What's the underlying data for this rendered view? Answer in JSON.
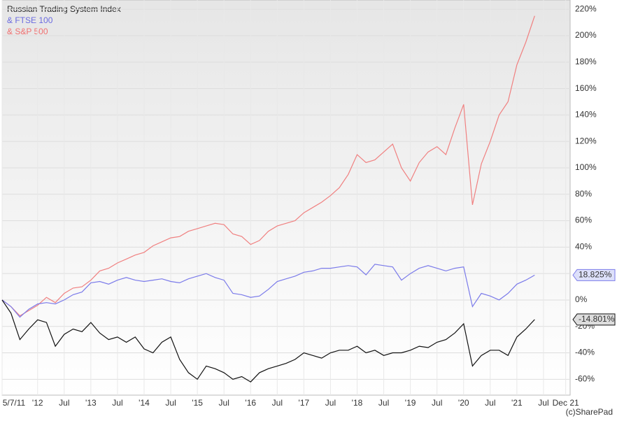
{
  "chart_data": {
    "type": "line",
    "legend": [
      "Russian Trading System Index",
      "& FTSE 100",
      "& S&P 500"
    ],
    "credit": "(c)SharePad",
    "xlim": [
      0,
      64
    ],
    "xticks": [
      {
        "value": 0,
        "label": "5/7/11"
      },
      {
        "value": 4,
        "label": "'12"
      },
      {
        "value": 7,
        "label": "Jul"
      },
      {
        "value": 10,
        "label": "'13"
      },
      {
        "value": 13,
        "label": "Jul"
      },
      {
        "value": 16,
        "label": "'14"
      },
      {
        "value": 19,
        "label": "Jul"
      },
      {
        "value": 22,
        "label": "'15"
      },
      {
        "value": 25,
        "label": "Jul"
      },
      {
        "value": 28,
        "label": "'16"
      },
      {
        "value": 31,
        "label": "Jul"
      },
      {
        "value": 34,
        "label": "'17"
      },
      {
        "value": 37,
        "label": "Jul"
      },
      {
        "value": 40,
        "label": "'18"
      },
      {
        "value": 43,
        "label": "Jul"
      },
      {
        "value": 46,
        "label": "'19"
      },
      {
        "value": 49,
        "label": "Jul"
      },
      {
        "value": 52,
        "label": "'20"
      },
      {
        "value": 55,
        "label": "Jul"
      },
      {
        "value": 58,
        "label": "'21"
      },
      {
        "value": 61,
        "label": "Jul"
      },
      {
        "value": 63.5,
        "label": "Dec 21"
      }
    ],
    "ylim": [
      -72,
      227
    ],
    "yticks": [
      {
        "value": -60,
        "label": "-60%"
      },
      {
        "value": -40,
        "label": "-40%"
      },
      {
        "value": -20,
        "label": "-20%"
      },
      {
        "value": 0,
        "label": "0%"
      },
      {
        "value": 20,
        "label": "20%"
      },
      {
        "value": 40,
        "label": "40%"
      },
      {
        "value": 60,
        "label": "60%"
      },
      {
        "value": 80,
        "label": "80%"
      },
      {
        "value": 100,
        "label": "100%"
      },
      {
        "value": 120,
        "label": "120%"
      },
      {
        "value": 140,
        "label": "140%"
      },
      {
        "value": 160,
        "label": "160%"
      },
      {
        "value": 180,
        "label": "180%"
      },
      {
        "value": 200,
        "label": "200%"
      },
      {
        "value": 220,
        "label": "220%"
      }
    ],
    "grid": true,
    "series": [
      {
        "name": "& S&P 500",
        "color": "#f08080",
        "values": [
          0,
          -5,
          -12,
          -8,
          -4,
          2,
          -2,
          5,
          9,
          10,
          15,
          22,
          24,
          28,
          31,
          34,
          36,
          41,
          44,
          47,
          48,
          52,
          54,
          56,
          58,
          57,
          50,
          48,
          42,
          45,
          52,
          56,
          58,
          60,
          66,
          70,
          74,
          79,
          85,
          95,
          110,
          104,
          106,
          112,
          118,
          100,
          90,
          104,
          112,
          116,
          110,
          130,
          148,
          72,
          103,
          120,
          140,
          150,
          178,
          195,
          215
        ]
      },
      {
        "name": "& FTSE 100",
        "color": "#7b7bea",
        "last_label": "18.825%",
        "values": [
          0,
          -5,
          -13,
          -7,
          -3,
          -2,
          -3,
          0,
          4,
          6,
          13,
          14,
          12,
          15,
          17,
          15,
          14,
          15,
          16,
          14,
          13,
          16,
          18,
          20,
          17,
          15,
          5,
          4,
          2,
          3,
          8,
          14,
          16,
          18,
          21,
          22,
          24,
          24,
          25,
          26,
          25,
          19,
          27,
          26,
          25,
          15,
          20,
          24,
          26,
          24,
          22,
          24,
          25,
          -5,
          5,
          3,
          0,
          5,
          12,
          15,
          18.825
        ]
      },
      {
        "name": "Russian Trading System Index",
        "color": "#111111",
        "last_label": "-14.801%",
        "values": [
          0,
          -10,
          -30,
          -22,
          -15,
          -17,
          -35,
          -26,
          -22,
          -24,
          -17,
          -25,
          -30,
          -28,
          -32,
          -28,
          -37,
          -40,
          -32,
          -28,
          -45,
          -55,
          -60,
          -50,
          -52,
          -55,
          -60,
          -58,
          -62,
          -55,
          -52,
          -50,
          -48,
          -45,
          -40,
          -42,
          -44,
          -40,
          -38,
          -38,
          -35,
          -40,
          -38,
          -42,
          -40,
          -40,
          -38,
          -35,
          -36,
          -32,
          -30,
          -25,
          -18,
          -50,
          -42,
          -38,
          -38,
          -42,
          -28,
          -22,
          -14.801
        ]
      }
    ]
  }
}
